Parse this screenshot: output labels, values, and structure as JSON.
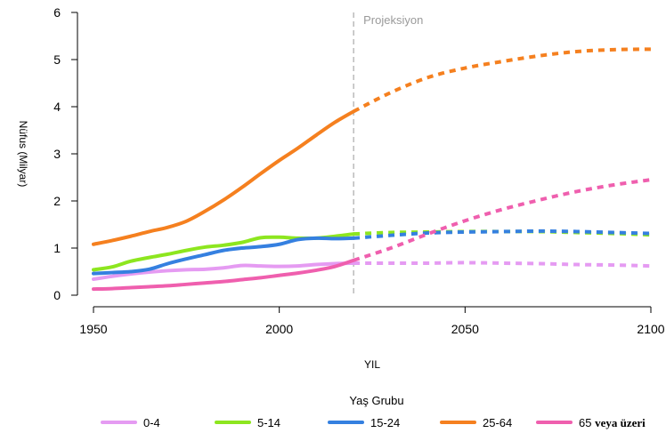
{
  "chart_data": {
    "type": "line",
    "title": "",
    "xlabel": "YIL",
    "ylabel": "Nüfus (Milyar)",
    "xlim": [
      1950,
      2100
    ],
    "ylim": [
      0,
      6
    ],
    "x_ticks": [
      1950,
      2000,
      2050,
      2100
    ],
    "y_ticks": [
      0,
      1,
      2,
      3,
      4,
      5,
      6
    ],
    "projection_start": 2020,
    "projection_label": "Projeksiyon",
    "legend_title": "Yaş Grubu",
    "legend_position": "bottom",
    "grid": false,
    "series": [
      {
        "name": "0-4",
        "color": "#e59bf2",
        "historical": [
          [
            1950,
            0.34
          ],
          [
            1955,
            0.4
          ],
          [
            1960,
            0.45
          ],
          [
            1965,
            0.49
          ],
          [
            1970,
            0.52
          ],
          [
            1975,
            0.54
          ],
          [
            1980,
            0.55
          ],
          [
            1985,
            0.58
          ],
          [
            1990,
            0.63
          ],
          [
            1995,
            0.62
          ],
          [
            2000,
            0.61
          ],
          [
            2005,
            0.62
          ],
          [
            2010,
            0.65
          ],
          [
            2015,
            0.67
          ],
          [
            2020,
            0.68
          ]
        ],
        "projection": [
          [
            2020,
            0.68
          ],
          [
            2030,
            0.68
          ],
          [
            2040,
            0.68
          ],
          [
            2050,
            0.69
          ],
          [
            2060,
            0.68
          ],
          [
            2070,
            0.67
          ],
          [
            2080,
            0.65
          ],
          [
            2090,
            0.64
          ],
          [
            2100,
            0.62
          ]
        ]
      },
      {
        "name": "5-14",
        "color": "#8de61f",
        "historical": [
          [
            1950,
            0.54
          ],
          [
            1955,
            0.6
          ],
          [
            1960,
            0.72
          ],
          [
            1965,
            0.8
          ],
          [
            1970,
            0.87
          ],
          [
            1975,
            0.95
          ],
          [
            1980,
            1.02
          ],
          [
            1985,
            1.06
          ],
          [
            1990,
            1.12
          ],
          [
            1995,
            1.22
          ],
          [
            2000,
            1.23
          ],
          [
            2005,
            1.21
          ],
          [
            2010,
            1.21
          ],
          [
            2015,
            1.25
          ],
          [
            2020,
            1.3
          ]
        ],
        "projection": [
          [
            2020,
            1.3
          ],
          [
            2030,
            1.33
          ],
          [
            2040,
            1.34
          ],
          [
            2050,
            1.35
          ],
          [
            2060,
            1.35
          ],
          [
            2070,
            1.35
          ],
          [
            2080,
            1.33
          ],
          [
            2090,
            1.31
          ],
          [
            2100,
            1.28
          ]
        ]
      },
      {
        "name": "15-24",
        "color": "#3580e0",
        "historical": [
          [
            1950,
            0.46
          ],
          [
            1955,
            0.48
          ],
          [
            1960,
            0.5
          ],
          [
            1965,
            0.55
          ],
          [
            1970,
            0.67
          ],
          [
            1975,
            0.77
          ],
          [
            1980,
            0.86
          ],
          [
            1985,
            0.95
          ],
          [
            1990,
            1.0
          ],
          [
            1995,
            1.03
          ],
          [
            2000,
            1.08
          ],
          [
            2005,
            1.18
          ],
          [
            2010,
            1.21
          ],
          [
            2015,
            1.2
          ],
          [
            2020,
            1.21
          ]
        ],
        "projection": [
          [
            2020,
            1.21
          ],
          [
            2030,
            1.27
          ],
          [
            2040,
            1.32
          ],
          [
            2050,
            1.34
          ],
          [
            2060,
            1.35
          ],
          [
            2070,
            1.36
          ],
          [
            2080,
            1.35
          ],
          [
            2090,
            1.33
          ],
          [
            2100,
            1.31
          ]
        ]
      },
      {
        "name": "25-64",
        "color": "#f5801f",
        "historical": [
          [
            1950,
            1.08
          ],
          [
            1955,
            1.16
          ],
          [
            1960,
            1.25
          ],
          [
            1965,
            1.35
          ],
          [
            1970,
            1.44
          ],
          [
            1975,
            1.57
          ],
          [
            1980,
            1.78
          ],
          [
            1985,
            2.02
          ],
          [
            1990,
            2.29
          ],
          [
            1995,
            2.58
          ],
          [
            2000,
            2.86
          ],
          [
            2005,
            3.12
          ],
          [
            2010,
            3.4
          ],
          [
            2015,
            3.67
          ],
          [
            2020,
            3.9
          ]
        ],
        "projection": [
          [
            2020,
            3.9
          ],
          [
            2030,
            4.3
          ],
          [
            2040,
            4.62
          ],
          [
            2050,
            4.82
          ],
          [
            2060,
            4.96
          ],
          [
            2070,
            5.08
          ],
          [
            2080,
            5.17
          ],
          [
            2090,
            5.21
          ],
          [
            2100,
            5.22
          ]
        ]
      },
      {
        "name": "65 veya üzeri",
        "color": "#ef5fae",
        "historical": [
          [
            1950,
            0.13
          ],
          [
            1955,
            0.14
          ],
          [
            1960,
            0.16
          ],
          [
            1965,
            0.18
          ],
          [
            1970,
            0.2
          ],
          [
            1975,
            0.23
          ],
          [
            1980,
            0.26
          ],
          [
            1985,
            0.29
          ],
          [
            1990,
            0.33
          ],
          [
            1995,
            0.37
          ],
          [
            2000,
            0.42
          ],
          [
            2005,
            0.47
          ],
          [
            2010,
            0.53
          ],
          [
            2015,
            0.61
          ],
          [
            2020,
            0.74
          ]
        ],
        "projection": [
          [
            2020,
            0.74
          ],
          [
            2030,
            1.0
          ],
          [
            2040,
            1.3
          ],
          [
            2050,
            1.58
          ],
          [
            2060,
            1.82
          ],
          [
            2070,
            2.02
          ],
          [
            2080,
            2.2
          ],
          [
            2090,
            2.34
          ],
          [
            2100,
            2.45
          ]
        ]
      }
    ]
  }
}
